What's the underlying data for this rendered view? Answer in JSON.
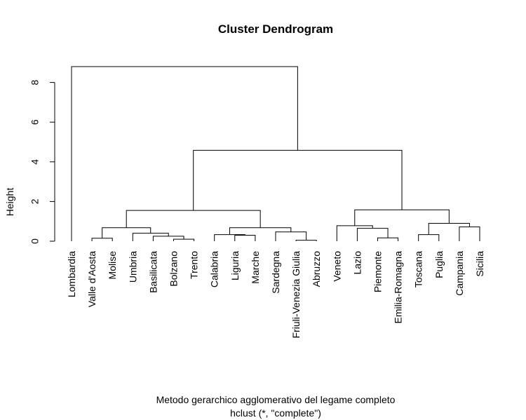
{
  "chart_data": {
    "type": "dendrogram",
    "title": "Cluster Dendrogram",
    "ylabel": "Height",
    "xlabel": "Metodo gerarchico agglomerativo del legame completo",
    "subtitle": "hclust (*, \"complete\")",
    "ylim": [
      0,
      9
    ],
    "yticks": [
      0,
      2,
      4,
      6,
      8
    ],
    "leaves": [
      "Lombardia",
      "Valle d'Aosta",
      "Molise",
      "Umbria",
      "Basilicata",
      "Bolzano",
      "Trento",
      "Calabria",
      "Liguria",
      "Marche",
      "Sardegna",
      "Friuli-Venezia Giulia",
      "Abruzzo",
      "Veneto",
      "Lazio",
      "Piemonte",
      "Emilia-Romagna",
      "Toscana",
      "Puglia",
      "Campania",
      "Sicilia"
    ],
    "merges": [
      {
        "left": "Bolzano",
        "right": "Trento",
        "height": 0.1
      },
      {
        "left": "Valle d'Aosta",
        "right": "Molise",
        "height": 0.15
      },
      {
        "left": "Liguria",
        "right": "Marche",
        "height": 0.3
      },
      {
        "left": "Friuli-Venezia Giulia",
        "right": "Abruzzo",
        "height": 0.05
      },
      {
        "left": "Piemonte",
        "right": "Emilia-Romagna",
        "height": 0.17
      },
      {
        "left": "Toscana",
        "right": "Puglia",
        "height": 0.33
      },
      {
        "left": "Basilicata",
        "right": "Bolzano+Trento",
        "height": 0.25
      },
      {
        "left": "Calabria",
        "right": "Liguria+Marche",
        "height": 0.33
      },
      {
        "left": "Umbria",
        "right": "Basilicata+Bolzano+Trento",
        "height": 0.4
      },
      {
        "left": "Sardegna",
        "right": "Friuli-Venezia Giulia+Abruzzo",
        "height": 0.47
      },
      {
        "left": "Lazio",
        "right": "Piemonte+Emilia-Romagna",
        "height": 0.65
      },
      {
        "left": "Valle d'Aosta+Molise",
        "right": "Umbria+Basilicata+Bolzano+Trento",
        "height": 0.68
      },
      {
        "left": "Calabria+Liguria+Marche",
        "right": "Sardegna+Friuli-Venezia Giulia+Abruzzo",
        "height": 0.68
      },
      {
        "left": "Campania",
        "right": "Sicilia",
        "height": 0.72
      },
      {
        "left": "Veneto",
        "right": "Lazio+Piemonte+Emilia-Romagna",
        "height": 0.78
      },
      {
        "left": "Toscana+Puglia",
        "right": "Campania+Sicilia",
        "height": 0.9
      },
      {
        "left": "Valle d'Aosta..Trento",
        "right": "Calabria..Abruzzo",
        "height": 1.55
      },
      {
        "left": "Veneto..Emilia-Romagna",
        "right": "Toscana..Sicilia",
        "height": 1.58
      },
      {
        "left": "Valle d'Aosta..Abruzzo",
        "right": "Veneto..Sicilia",
        "height": 4.58
      },
      {
        "left": "Lombardia",
        "right": "Valle d'Aosta..Sicilia",
        "height": 8.8
      }
    ]
  }
}
